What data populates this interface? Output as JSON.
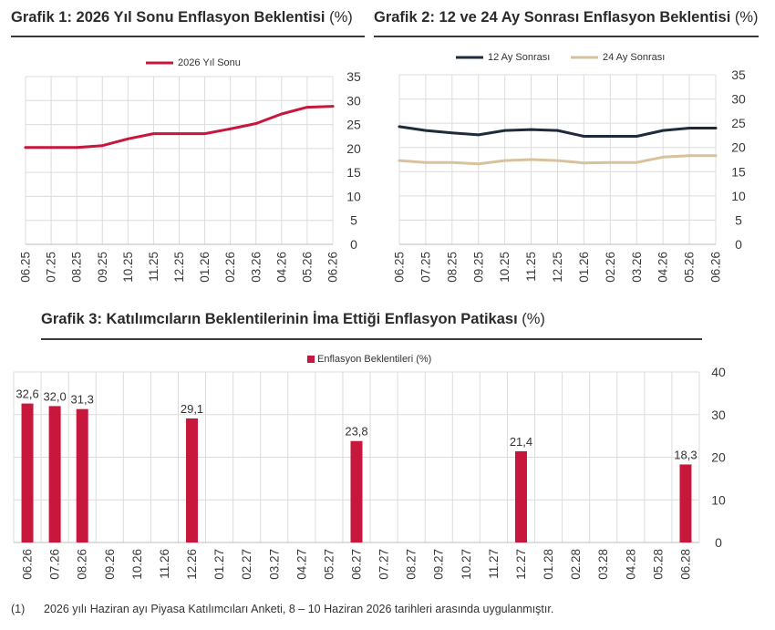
{
  "chart_data": [
    {
      "type": "line",
      "title": "Grafik 1: 2026 Yıl Sonu Enflasyon Beklentisi",
      "title_unit": "(%)",
      "x": [
        "06.25",
        "07.25",
        "08.25",
        "09.25",
        "10.25",
        "11.25",
        "12.25",
        "01.26",
        "02.26",
        "03.26",
        "04.26",
        "05.26",
        "06.26"
      ],
      "series": [
        {
          "name": "2026 Yıl Sonu",
          "color": "#c8173c",
          "values": [
            20.2,
            20.2,
            20.2,
            20.6,
            22.0,
            23.1,
            23.1,
            23.1,
            24.1,
            25.2,
            27.2,
            28.6,
            28.8
          ]
        }
      ],
      "ylim": [
        0,
        35
      ],
      "yticks": [
        0,
        5,
        10,
        15,
        20,
        25,
        30,
        35
      ],
      "yaxis_side": "right",
      "grid": true,
      "legend": "top"
    },
    {
      "type": "line",
      "title": "Grafik 2: 12 ve 24 Ay Sonrası Enflasyon Beklentisi",
      "title_unit": "(%)",
      "x": [
        "06.25",
        "07.25",
        "08.25",
        "09.25",
        "10.25",
        "11.25",
        "12.25",
        "01.26",
        "02.26",
        "03.26",
        "04.26",
        "05.26",
        "06.26"
      ],
      "series": [
        {
          "name": "12 Ay Sonrası",
          "color": "#1f2b3b",
          "values": [
            24.3,
            23.5,
            23.0,
            22.6,
            23.5,
            23.7,
            23.5,
            22.3,
            22.3,
            22.3,
            23.5,
            24.0,
            24.0
          ]
        },
        {
          "name": "24 Ay Sonrası",
          "color": "#d8c29e",
          "values": [
            17.3,
            16.9,
            16.9,
            16.6,
            17.3,
            17.5,
            17.3,
            16.8,
            16.9,
            16.9,
            18.0,
            18.3,
            18.3
          ]
        }
      ],
      "ylim": [
        0,
        35
      ],
      "yticks": [
        0,
        5,
        10,
        15,
        20,
        25,
        30,
        35
      ],
      "yaxis_side": "right",
      "grid": true,
      "legend": "top"
    },
    {
      "type": "bar",
      "title": "Grafik 3: Katılımcıların Beklentilerinin İma Ettiği Enflasyon Patikası",
      "title_unit": "(%)",
      "categories": [
        "06.26",
        "07.26",
        "08.26",
        "09.26",
        "10.26",
        "11.26",
        "12.26",
        "01.27",
        "02.27",
        "03.27",
        "04.27",
        "05.27",
        "06.27",
        "07.27",
        "08.27",
        "09.27",
        "10.27",
        "11.27",
        "12.27",
        "01.28",
        "02.28",
        "03.28",
        "04.28",
        "05.28",
        "06.28"
      ],
      "series": [
        {
          "name": "Enflasyon Beklentileri (%)",
          "color": "#c8173c",
          "values": [
            32.6,
            32.0,
            31.3,
            null,
            null,
            null,
            29.1,
            null,
            null,
            null,
            null,
            null,
            23.8,
            null,
            null,
            null,
            null,
            null,
            21.4,
            null,
            null,
            null,
            null,
            null,
            18.3
          ],
          "data_labels": [
            "32,6",
            "32,0",
            "31,3",
            null,
            null,
            null,
            "29,1",
            null,
            null,
            null,
            null,
            null,
            "23,8",
            null,
            null,
            null,
            null,
            null,
            "21,4",
            null,
            null,
            null,
            null,
            null,
            "18,3"
          ]
        }
      ],
      "ylim": [
        0,
        40
      ],
      "yticks": [
        0,
        10,
        20,
        30,
        40
      ],
      "yaxis_side": "right",
      "grid": true,
      "legend": "top"
    }
  ],
  "footnote": {
    "marker": "(1)",
    "text": "2026 yılı Haziran ayı Piyasa Katılımcıları Anketi, 8 – 10 Haziran 2026 tarihleri arasında uygulanmıştır."
  }
}
